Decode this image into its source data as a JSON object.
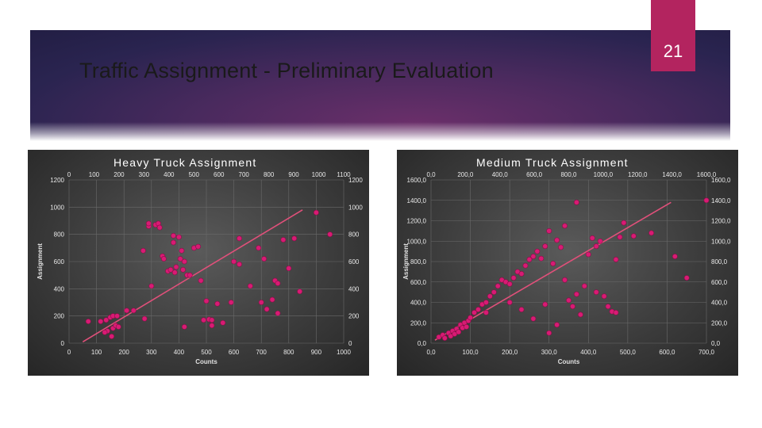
{
  "slide": {
    "title": "Traffic Assignment - Preliminary Evaluation",
    "number": "21",
    "colors": {
      "banner": "#3a2458",
      "accent": "#b3245f",
      "point": "#d81b74",
      "trend": "#e0507a"
    }
  },
  "chart_data": [
    {
      "type": "scatter",
      "title": "Heavy Truck Assignment",
      "xlabel": "Counts",
      "ylabel": "Assignment",
      "xlim": [
        0,
        1000
      ],
      "ylim": [
        0,
        1200
      ],
      "x_ticks": [
        "0",
        "100",
        "200",
        "300",
        "400",
        "500",
        "600",
        "700",
        "800",
        "900",
        "1000"
      ],
      "top_ticks": [
        "0",
        "100",
        "200",
        "300",
        "400",
        "500",
        "600",
        "700",
        "800",
        "900",
        "1000",
        "1100"
      ],
      "y_ticks": [
        "0",
        "200",
        "400",
        "600",
        "800",
        "1000",
        "1200"
      ],
      "grid": true,
      "trendline": {
        "x": [
          50,
          850
        ],
        "y": [
          10,
          980
        ]
      },
      "points": [
        [
          70,
          160
        ],
        [
          115,
          160
        ],
        [
          135,
          170
        ],
        [
          150,
          190
        ],
        [
          160,
          200
        ],
        [
          175,
          200
        ],
        [
          140,
          90
        ],
        [
          160,
          110
        ],
        [
          170,
          130
        ],
        [
          130,
          80
        ],
        [
          155,
          50
        ],
        [
          180,
          120
        ],
        [
          210,
          240
        ],
        [
          235,
          240
        ],
        [
          275,
          180
        ],
        [
          290,
          860
        ],
        [
          290,
          880
        ],
        [
          315,
          870
        ],
        [
          325,
          880
        ],
        [
          330,
          850
        ],
        [
          270,
          680
        ],
        [
          300,
          420
        ],
        [
          340,
          640
        ],
        [
          345,
          620
        ],
        [
          360,
          530
        ],
        [
          370,
          540
        ],
        [
          385,
          520
        ],
        [
          380,
          740
        ],
        [
          380,
          790
        ],
        [
          400,
          780
        ],
        [
          410,
          680
        ],
        [
          405,
          620
        ],
        [
          390,
          560
        ],
        [
          415,
          540
        ],
        [
          420,
          600
        ],
        [
          430,
          500
        ],
        [
          440,
          500
        ],
        [
          455,
          700
        ],
        [
          470,
          710
        ],
        [
          480,
          460
        ],
        [
          500,
          310
        ],
        [
          490,
          170
        ],
        [
          510,
          175
        ],
        [
          520,
          170
        ],
        [
          540,
          290
        ],
        [
          560,
          150
        ],
        [
          590,
          300
        ],
        [
          600,
          600
        ],
        [
          620,
          580
        ],
        [
          620,
          770
        ],
        [
          660,
          420
        ],
        [
          690,
          700
        ],
        [
          700,
          300
        ],
        [
          710,
          620
        ],
        [
          720,
          250
        ],
        [
          740,
          320
        ],
        [
          750,
          460
        ],
        [
          760,
          440
        ],
        [
          760,
          220
        ],
        [
          780,
          760
        ],
        [
          800,
          550
        ],
        [
          820,
          770
        ],
        [
          840,
          380
        ],
        [
          900,
          960
        ],
        [
          950,
          800
        ],
        [
          420,
          120
        ],
        [
          520,
          130
        ]
      ]
    },
    {
      "type": "scatter",
      "title": "Medium Truck Assignment",
      "xlabel": "Counts",
      "ylabel": "Assignment",
      "xlim": [
        0,
        700
      ],
      "ylim": [
        0,
        1600
      ],
      "x_ticks": [
        "0,0",
        "100,0",
        "200,0",
        "300,0",
        "400,0",
        "500,0",
        "600,0",
        "700,0"
      ],
      "top_ticks": [
        "0,0",
        "200,0",
        "400,0",
        "600,0",
        "800,0",
        "1000,0",
        "1200,0",
        "1400,0",
        "1600,0"
      ],
      "y_ticks": [
        "0,0",
        "200,0",
        "400,0",
        "600,0",
        "800,0",
        "1000,0",
        "1200,0",
        "1400,0",
        "1600,0"
      ],
      "grid": true,
      "trendline": {
        "x": [
          10,
          610
        ],
        "y": [
          30,
          1380
        ]
      },
      "points": [
        [
          20,
          60
        ],
        [
          30,
          80
        ],
        [
          35,
          50
        ],
        [
          45,
          100
        ],
        [
          50,
          70
        ],
        [
          55,
          120
        ],
        [
          60,
          90
        ],
        [
          65,
          140
        ],
        [
          70,
          110
        ],
        [
          75,
          180
        ],
        [
          80,
          150
        ],
        [
          85,
          200
        ],
        [
          90,
          160
        ],
        [
          95,
          220
        ],
        [
          100,
          250
        ],
        [
          110,
          300
        ],
        [
          120,
          330
        ],
        [
          130,
          380
        ],
        [
          140,
          400
        ],
        [
          150,
          460
        ],
        [
          160,
          500
        ],
        [
          170,
          560
        ],
        [
          180,
          620
        ],
        [
          190,
          600
        ],
        [
          200,
          580
        ],
        [
          210,
          640
        ],
        [
          220,
          700
        ],
        [
          230,
          680
        ],
        [
          240,
          760
        ],
        [
          250,
          820
        ],
        [
          260,
          850
        ],
        [
          270,
          900
        ],
        [
          280,
          830
        ],
        [
          290,
          950
        ],
        [
          300,
          1100
        ],
        [
          310,
          780
        ],
        [
          320,
          1010
        ],
        [
          330,
          940
        ],
        [
          340,
          1150
        ],
        [
          350,
          420
        ],
        [
          360,
          360
        ],
        [
          370,
          480
        ],
        [
          380,
          280
        ],
        [
          390,
          560
        ],
        [
          400,
          870
        ],
        [
          410,
          1030
        ],
        [
          420,
          950
        ],
        [
          430,
          1000
        ],
        [
          440,
          460
        ],
        [
          450,
          360
        ],
        [
          460,
          310
        ],
        [
          470,
          820
        ],
        [
          480,
          1040
        ],
        [
          490,
          1180
        ],
        [
          200,
          400
        ],
        [
          230,
          330
        ],
        [
          260,
          240
        ],
        [
          290,
          380
        ],
        [
          320,
          180
        ],
        [
          340,
          620
        ],
        [
          370,
          1380
        ],
        [
          420,
          500
        ],
        [
          470,
          300
        ],
        [
          515,
          1050
        ],
        [
          560,
          1080
        ],
        [
          620,
          850
        ],
        [
          650,
          640
        ],
        [
          700,
          1400
        ],
        [
          300,
          100
        ],
        [
          140,
          300
        ]
      ]
    }
  ]
}
